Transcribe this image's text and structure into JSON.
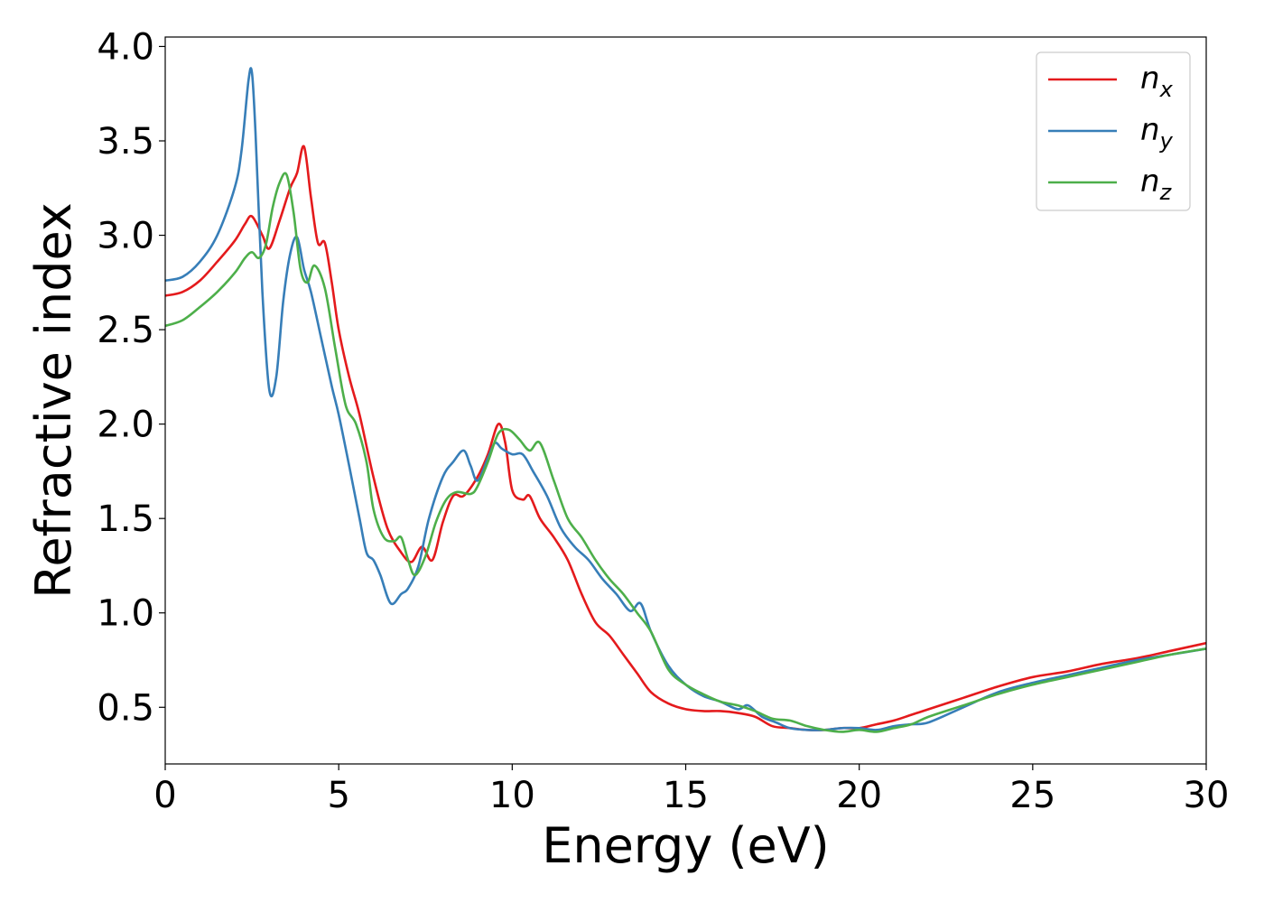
{
  "chart_data": {
    "type": "line",
    "title": "",
    "xlabel": "Energy (eV)",
    "ylabel": "Refractive index",
    "xlim": [
      0,
      30
    ],
    "ylim": [
      0.2,
      4.05
    ],
    "xticks": [
      0,
      5,
      10,
      15,
      20,
      25,
      30
    ],
    "xtick_labels": [
      "0",
      "5",
      "10",
      "15",
      "20",
      "25",
      "30"
    ],
    "yticks": [
      0.5,
      1.0,
      1.5,
      2.0,
      2.5,
      3.0,
      3.5,
      4.0
    ],
    "ytick_labels": [
      "0.5",
      "1.0",
      "1.5",
      "2.0",
      "2.5",
      "3.0",
      "3.5",
      "4.0"
    ],
    "grid": false,
    "legend_position": "top-right",
    "series": [
      {
        "name": "n_x",
        "base": "n",
        "subscript": "x",
        "color": "#e41a1c",
        "x": [
          0,
          0.5,
          1.0,
          1.5,
          2.0,
          2.3,
          2.5,
          2.8,
          3.0,
          3.3,
          3.6,
          3.8,
          4.0,
          4.2,
          4.4,
          4.6,
          4.8,
          5.0,
          5.3,
          5.6,
          6.0,
          6.4,
          6.8,
          7.1,
          7.4,
          7.7,
          8.0,
          8.3,
          8.6,
          9.0,
          9.3,
          9.6,
          9.8,
          10.0,
          10.3,
          10.5,
          10.8,
          11.2,
          11.6,
          12.0,
          12.4,
          12.8,
          13.2,
          13.6,
          14.0,
          14.5,
          15.0,
          15.5,
          16.0,
          16.5,
          17.0,
          17.5,
          18.0,
          18.5,
          19.0,
          19.5,
          20.0,
          20.5,
          21.0,
          21.5,
          22.0,
          23.0,
          24.0,
          25.0,
          26.0,
          27.0,
          28.0,
          29.0,
          30.0
        ],
        "y": [
          2.68,
          2.7,
          2.76,
          2.86,
          2.97,
          3.06,
          3.1,
          3.0,
          2.93,
          3.08,
          3.25,
          3.33,
          3.47,
          3.2,
          2.96,
          2.96,
          2.75,
          2.5,
          2.25,
          2.05,
          1.72,
          1.45,
          1.32,
          1.27,
          1.35,
          1.28,
          1.48,
          1.62,
          1.62,
          1.72,
          1.84,
          2.0,
          1.9,
          1.65,
          1.6,
          1.62,
          1.5,
          1.4,
          1.28,
          1.1,
          0.95,
          0.88,
          0.78,
          0.68,
          0.58,
          0.52,
          0.49,
          0.48,
          0.48,
          0.47,
          0.45,
          0.4,
          0.39,
          0.38,
          0.38,
          0.39,
          0.39,
          0.41,
          0.43,
          0.46,
          0.49,
          0.55,
          0.61,
          0.66,
          0.69,
          0.73,
          0.76,
          0.8,
          0.84
        ]
      },
      {
        "name": "n_y",
        "base": "n",
        "subscript": "y",
        "color": "#377eb8",
        "x": [
          0,
          0.5,
          1.0,
          1.5,
          2.0,
          2.2,
          2.4,
          2.5,
          2.6,
          2.8,
          3.0,
          3.2,
          3.4,
          3.6,
          3.8,
          4.0,
          4.2,
          4.5,
          4.8,
          5.0,
          5.3,
          5.6,
          5.8,
          6.0,
          6.2,
          6.5,
          6.8,
          7.0,
          7.3,
          7.6,
          8.0,
          8.3,
          8.6,
          8.8,
          9.0,
          9.3,
          9.5,
          9.7,
          10.0,
          10.3,
          10.6,
          11.0,
          11.4,
          11.8,
          12.2,
          12.6,
          13.0,
          13.4,
          13.7,
          14.0,
          14.5,
          15.0,
          15.5,
          16.0,
          16.5,
          16.8,
          17.2,
          17.6,
          18.0,
          18.5,
          19.0,
          19.5,
          20.0,
          20.5,
          21.0,
          21.5,
          22.0,
          23.0,
          24.0,
          25.0,
          26.0,
          27.0,
          28.0,
          29.0,
          30.0
        ],
        "y": [
          2.76,
          2.78,
          2.86,
          3.0,
          3.25,
          3.45,
          3.82,
          3.86,
          3.55,
          2.7,
          2.18,
          2.25,
          2.65,
          2.9,
          2.99,
          2.82,
          2.7,
          2.45,
          2.2,
          2.05,
          1.78,
          1.5,
          1.32,
          1.28,
          1.2,
          1.05,
          1.1,
          1.13,
          1.25,
          1.5,
          1.72,
          1.8,
          1.86,
          1.78,
          1.7,
          1.82,
          1.9,
          1.87,
          1.84,
          1.84,
          1.75,
          1.62,
          1.45,
          1.35,
          1.28,
          1.18,
          1.1,
          1.01,
          1.05,
          0.9,
          0.72,
          0.62,
          0.56,
          0.53,
          0.49,
          0.51,
          0.45,
          0.42,
          0.39,
          0.38,
          0.38,
          0.39,
          0.39,
          0.38,
          0.4,
          0.41,
          0.42,
          0.5,
          0.58,
          0.63,
          0.67,
          0.71,
          0.75,
          0.78,
          0.81
        ]
      },
      {
        "name": "n_z",
        "base": "n",
        "subscript": "z",
        "color": "#4daf4a",
        "x": [
          0,
          0.5,
          1.0,
          1.5,
          2.0,
          2.3,
          2.5,
          2.7,
          2.9,
          3.1,
          3.3,
          3.5,
          3.7,
          3.9,
          4.1,
          4.3,
          4.6,
          4.9,
          5.2,
          5.5,
          5.8,
          6.0,
          6.3,
          6.6,
          6.8,
          7.0,
          7.2,
          7.5,
          7.8,
          8.1,
          8.4,
          8.8,
          9.0,
          9.3,
          9.6,
          9.9,
          10.2,
          10.5,
          10.8,
          11.2,
          11.6,
          12.0,
          12.4,
          12.8,
          13.2,
          13.6,
          14.0,
          14.5,
          15.0,
          15.5,
          16.0,
          16.5,
          17.0,
          17.5,
          18.0,
          18.5,
          19.0,
          19.5,
          20.0,
          20.5,
          21.0,
          21.5,
          22.0,
          23.0,
          24.0,
          25.0,
          26.0,
          27.0,
          28.0,
          29.0,
          30.0
        ],
        "y": [
          2.52,
          2.55,
          2.62,
          2.7,
          2.8,
          2.88,
          2.91,
          2.88,
          2.95,
          3.15,
          3.28,
          3.32,
          3.12,
          2.82,
          2.75,
          2.84,
          2.72,
          2.4,
          2.1,
          2.0,
          1.8,
          1.55,
          1.4,
          1.38,
          1.4,
          1.28,
          1.2,
          1.3,
          1.48,
          1.6,
          1.64,
          1.63,
          1.67,
          1.8,
          1.95,
          1.97,
          1.92,
          1.86,
          1.9,
          1.7,
          1.5,
          1.4,
          1.28,
          1.18,
          1.1,
          1.0,
          0.9,
          0.7,
          0.62,
          0.57,
          0.53,
          0.51,
          0.48,
          0.44,
          0.43,
          0.4,
          0.38,
          0.37,
          0.38,
          0.37,
          0.39,
          0.41,
          0.45,
          0.51,
          0.57,
          0.62,
          0.66,
          0.7,
          0.74,
          0.78,
          0.81
        ]
      }
    ]
  }
}
